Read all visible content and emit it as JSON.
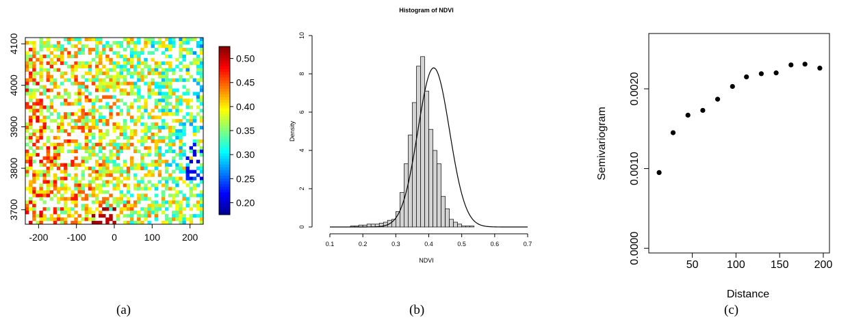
{
  "panels": {
    "a": {
      "caption": "(a)",
      "chart_data": {
        "type": "heatmap",
        "xlim": [
          -235,
          235
        ],
        "ylim": [
          3665,
          4115
        ],
        "x_ticks": [
          -200,
          -100,
          0,
          100,
          200
        ],
        "y_ticks": [
          3700,
          3800,
          3900,
          4000,
          4100
        ],
        "colorbar": {
          "range": [
            0.175,
            0.525
          ],
          "ticks": [
            0.2,
            0.25,
            0.3,
            0.35,
            0.4,
            0.45,
            0.5
          ],
          "tick_labels": [
            "0.20",
            "0.25",
            "0.30",
            "0.35",
            "0.40",
            "0.45",
            "0.50"
          ]
        },
        "grid": false,
        "legend": "right"
      }
    },
    "b": {
      "caption": "(b)",
      "chart_data": {
        "type": "bar",
        "title": "Histogram of NDVI",
        "xlabel": "NDVI",
        "ylabel": "Density",
        "xlim": [
          0.1,
          0.7
        ],
        "ylim": [
          0,
          10
        ],
        "x_ticks": [
          0.1,
          0.2,
          0.3,
          0.4,
          0.5,
          0.6,
          0.7
        ],
        "y_ticks": [
          0,
          2,
          4,
          6,
          8,
          10
        ],
        "bin_width": 0.0125,
        "bin_starts": [
          0.1625,
          0.175,
          0.1875,
          0.2,
          0.2125,
          0.225,
          0.2375,
          0.25,
          0.2625,
          0.275,
          0.2875,
          0.3,
          0.3125,
          0.325,
          0.3375,
          0.35,
          0.3625,
          0.375,
          0.3875,
          0.4,
          0.4125,
          0.425,
          0.4375,
          0.45,
          0.4625,
          0.475,
          0.4875,
          0.5,
          0.5125,
          0.525
        ],
        "densities": [
          0.05,
          0.05,
          0.1,
          0.1,
          0.15,
          0.15,
          0.15,
          0.2,
          0.25,
          0.35,
          0.4,
          0.8,
          1.8,
          3.3,
          4.8,
          6.5,
          8.4,
          8.9,
          7.1,
          5.1,
          4.0,
          3.3,
          1.6,
          0.95,
          0.4,
          0.25,
          0.15,
          0.05,
          0.05,
          0.05
        ],
        "normal_curve": {
          "mean": 0.415,
          "sd": 0.048
        },
        "grid": false
      }
    },
    "c": {
      "caption": "(c)",
      "chart_data": {
        "type": "scatter",
        "xlabel": "Distance",
        "ylabel": "Semivariogram",
        "xlim": [
          8,
          200
        ],
        "ylim": [
          -5e-05,
          0.0026
        ],
        "x_ticks": [
          50,
          100,
          150,
          200
        ],
        "y_ticks": [
          0,
          0.001,
          0.002
        ],
        "y_tick_labels": [
          "0.0000",
          "0.0010",
          "0.0020"
        ],
        "x": [
          12,
          28,
          45,
          62,
          79,
          96,
          112,
          129,
          146,
          163,
          179,
          196
        ],
        "y": [
          0.00095,
          0.00145,
          0.00167,
          0.00173,
          0.00187,
          0.00203,
          0.00215,
          0.00219,
          0.0022,
          0.0023,
          0.00231,
          0.00226
        ],
        "grid": false
      }
    }
  },
  "colors": {
    "jet": [
      "#00008F",
      "#0000FF",
      "#007FFF",
      "#00FFFF",
      "#7FFF7F",
      "#FFFF00",
      "#FF7F00",
      "#FF0000",
      "#7F0000"
    ],
    "bar_fill": "#d3d3d3",
    "axis": "#000000"
  }
}
